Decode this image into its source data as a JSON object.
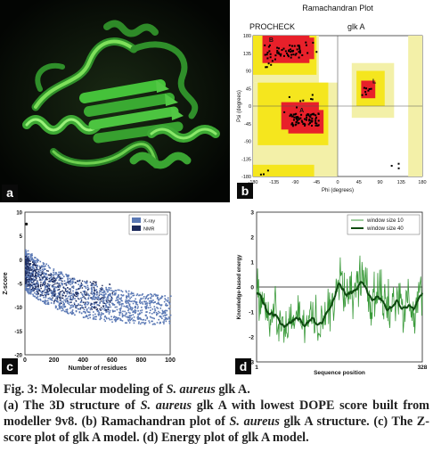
{
  "figure": {
    "panels": {
      "a": {
        "label": "a"
      },
      "b": {
        "label": "b"
      },
      "c": {
        "label": "c"
      },
      "d": {
        "label": "d"
      }
    },
    "caption": {
      "line1_prefix": "Fig. 3: Molecular modeling of ",
      "line1_species": "S. aureus",
      "line1_suffix": " glk A.",
      "body_a_prefix": "(a) The 3D structure of ",
      "body_a_species": "S. aureus",
      "body_a_suffix": " glk A with lowest DOPE score built from modeller 9v8. (b) Ramachandran plot of ",
      "body_b_species": "S. aureus",
      "body_b_suffix": " glk A structure. (c) The Z-score plot of glk A model. (d) Energy plot of glk A model."
    }
  },
  "chart_data": [
    {
      "type": "scatter",
      "panel": "b",
      "title": "Ramachandran Plot",
      "subtitle": "glk A",
      "corner_text": "PROCHECK",
      "xlabel": "Phi (degrees)",
      "ylabel": "Psi (degrees)",
      "xlim": [
        -180,
        180
      ],
      "ylim": [
        -180,
        180
      ],
      "x_ticks": [
        "-180",
        "-135",
        "-90",
        "-45",
        "0",
        "45",
        "90",
        "135",
        "180"
      ],
      "y_ticks": [
        "180",
        "135",
        "90",
        "45",
        "0",
        "-45",
        "-90",
        "-135",
        "-180"
      ],
      "region_letters": [
        "B",
        "A",
        "L"
      ],
      "colors": {
        "core": "#e8202a",
        "allowed": "#f5e61e",
        "generous": "#f3f0a8",
        "disallowed": "#ffffff"
      }
    },
    {
      "type": "scatter",
      "panel": "c",
      "xlabel": "Number of residues",
      "ylabel": "Z-score",
      "xlim": [
        0,
        100
      ],
      "ylim": [
        -20,
        10
      ],
      "x_ticks": [
        "0",
        "200",
        "400",
        "600",
        "800",
        "100"
      ],
      "y_ticks": [
        "10",
        "5",
        "0",
        "-5",
        "-10",
        "-15",
        "-20"
      ],
      "series": [
        {
          "name": "X-ray",
          "color": "#5a78b4"
        },
        {
          "name": "NMR",
          "color": "#1c2a5c"
        }
      ]
    },
    {
      "type": "line",
      "panel": "d",
      "xlabel": "Sequence position",
      "ylabel": "Knowledge-based energy",
      "x_ticks": [
        "1",
        "328"
      ],
      "y_ticks": [
        "3",
        "2",
        "1",
        "0",
        "-1",
        "-2",
        "-3"
      ],
      "ylim": [
        -3,
        3
      ],
      "series": [
        {
          "name": "window size 10",
          "color": "#3a9a3a"
        },
        {
          "name": "window size 40",
          "color": "#0e4a10"
        }
      ]
    }
  ]
}
